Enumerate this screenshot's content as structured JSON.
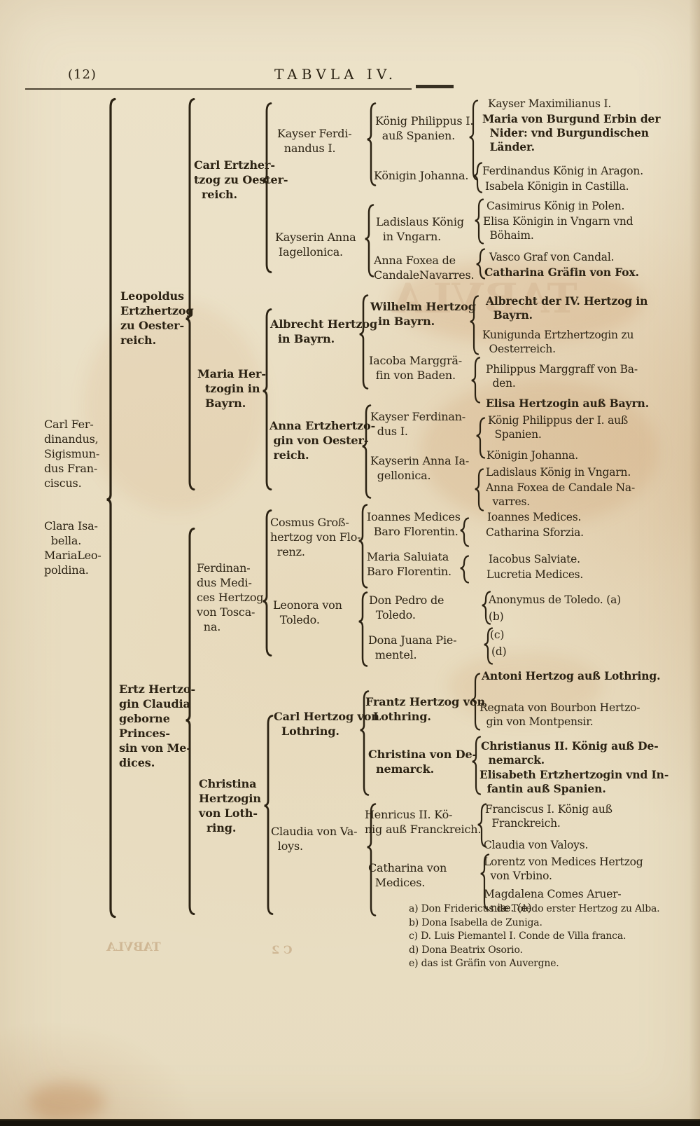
{
  "page": {
    "number": "(12)",
    "title": "TABVLA IV."
  },
  "colors": {
    "paper": "#ece2c9",
    "ink": "#2b2213",
    "stain": "#bb7434"
  },
  "tree": {
    "nodes": [
      {
        "id": "p1",
        "text": "Carl Fer-\ndinandus,\nSigismun-\ndus Fran-\nciscus."
      },
      {
        "id": "p2",
        "text": "Clara Isa-\n  bella.\nMariaLeo-\npoldina."
      },
      {
        "id": "p3",
        "text": "Leopoldus\nErtzhertzog\nzu Oester-\nreich."
      },
      {
        "id": "p4",
        "text": "Ertz Hertzo-\ngin Claudia\ngeborne\nPrinces-\nsin von Me-\ndices."
      },
      {
        "id": "p5",
        "text": "Carl Ertzher-\ntzog zu Oester-\n  reich."
      },
      {
        "id": "p6",
        "text": "Maria Her-\n  tzogin in\n  Bayrn."
      },
      {
        "id": "p7",
        "text": "Ferdinan-\ndus Medi-\nces Hertzog\nvon Tosca-\n  na."
      },
      {
        "id": "p8",
        "text": "Christina\nHertzogin\nvon Loth-\n  ring."
      },
      {
        "id": "p9",
        "text": "Kayser Ferdi-\n  nandus I."
      },
      {
        "id": "p10",
        "text": "Kayserin Anna\n Iagellonica."
      },
      {
        "id": "p11",
        "text": "Albrecht Hertzog\n  in Bayrn."
      },
      {
        "id": "p12",
        "text": "Anna Ertzhertzo-\n gin von Oester-\n reich."
      },
      {
        "id": "p13",
        "text": "Cosmus Groß-\nhertzog von Flo-\n  renz."
      },
      {
        "id": "p14",
        "text": "Leonora von\n  Toledo."
      },
      {
        "id": "p15",
        "text": "Carl Hertzog von\n  Lothring."
      },
      {
        "id": "p16",
        "text": "Claudia von Va-\n  loys."
      },
      {
        "id": "q1",
        "text": "König Philippus I.\n  auß Spanien."
      },
      {
        "id": "q2",
        "text": "Königin Johanna."
      },
      {
        "id": "q3",
        "text": "Ladislaus König\n  in Vngarn."
      },
      {
        "id": "q4",
        "text": "Anna Foxea de\nCandaleNavarres."
      },
      {
        "id": "q5",
        "text": "Wilhelm Hertzog\n  in Bayrn."
      },
      {
        "id": "q6",
        "text": "Iacoba Marggrä-\n  fin von Baden."
      },
      {
        "id": "q7",
        "text": "Kayser Ferdinan-\n  dus I."
      },
      {
        "id": "q8",
        "text": "Kayserin Anna Ia-\n  gellonica."
      },
      {
        "id": "q9",
        "text": "Ioannes Medices\n  Baro Florentin."
      },
      {
        "id": "q10",
        "text": "Maria Saluiata\nBaro Florentin."
      },
      {
        "id": "q11",
        "text": "Don Pedro de\n  Toledo."
      },
      {
        "id": "q12",
        "text": "Dona Juana Pie-\n  mentel."
      },
      {
        "id": "q13",
        "text": "Frantz Hertzog von\n  Lothring."
      },
      {
        "id": "q14",
        "text": "Christina von De-\n  nemarck."
      },
      {
        "id": "q15",
        "text": "Henricus II. Kö-\nnig auß Franckreich."
      },
      {
        "id": "q16",
        "text": "Catharina von\n  Medices."
      },
      {
        "id": "r1",
        "text": "Kayser Maximilianus I."
      },
      {
        "id": "r2",
        "text": "Maria von Burgund Erbin der\n  Nider: vnd Burgundischen\n  Länder."
      },
      {
        "id": "r3",
        "text": "Ferdinandus König in Aragon."
      },
      {
        "id": "r4",
        "text": "Isabela Königin in Castilla."
      },
      {
        "id": "r5",
        "text": "Casimirus König in Polen."
      },
      {
        "id": "r6",
        "text": "Elisa Königin in Vngarn vnd\n  Böhaim."
      },
      {
        "id": "r7",
        "text": "Vasco Graf von Candal."
      },
      {
        "id": "r8",
        "text": "Catharina Gräfin von Fox."
      },
      {
        "id": "r9",
        "text": "Albrecht der IV. Hertzog in\n  Bayrn."
      },
      {
        "id": "r10",
        "text": "Kunigunda Ertzhertzogin zu\n  Oesterreich."
      },
      {
        "id": "r11",
        "text": "Philippus Marggraff von Ba-\n  den."
      },
      {
        "id": "r12",
        "text": "Elisa Hertzogin auß Bayrn."
      },
      {
        "id": "r13",
        "text": "König Philippus der I. auß\n  Spanien."
      },
      {
        "id": "r14",
        "text": "Königin Johanna."
      },
      {
        "id": "r15",
        "text": "Ladislaus König in Vngarn."
      },
      {
        "id": "r16",
        "text": "Anna Foxea de Candale Na-\n  varres."
      },
      {
        "id": "r17",
        "text": "Ioannes Medices."
      },
      {
        "id": "r18",
        "text": "Catharina Sforzia."
      },
      {
        "id": "r19",
        "text": "Iacobus Salviate."
      },
      {
        "id": "r20",
        "text": "Lucretia Medices."
      },
      {
        "id": "r21",
        "text": "Anonymus de Toledo. (a)"
      },
      {
        "id": "r22",
        "text": "(b)"
      },
      {
        "id": "r23",
        "text": "(c)"
      },
      {
        "id": "r24",
        "text": "(d)"
      },
      {
        "id": "r25",
        "text": "Antoni Hertzog auß Lothring."
      },
      {
        "id": "r26",
        "text": "Regnata von Bourbon Hertzo-\n  gin von Montpensir."
      },
      {
        "id": "r27",
        "text": "Christianus II. König auß De-\n  nemarck."
      },
      {
        "id": "r28",
        "text": "Elisabeth Ertzhertzogin vnd In-\n  fantin auß Spanien."
      },
      {
        "id": "r29",
        "text": "Franciscus I. König auß\n  Franckreich."
      },
      {
        "id": "r30",
        "text": "Claudia von Valoys."
      },
      {
        "id": "r31",
        "text": "Lorentz von Medices Hertzog\n  von Vrbino."
      },
      {
        "id": "r32",
        "text": "Magdalena Comes Aruer-\n  niæ. (e)"
      }
    ]
  },
  "footnotes": [
    "a) Don Fridericus de Toledo erster Hertzog zu Alba.",
    "b) Dona Isabella de Zuniga.",
    "c) D. Luis Piemantel I. Conde de Villa franca.",
    "d) Dona Beatrix Osorio.",
    "e) das ist Gräfin von Auvergne."
  ],
  "verso_show_through": [
    "TABVLA",
    "C 2"
  ]
}
